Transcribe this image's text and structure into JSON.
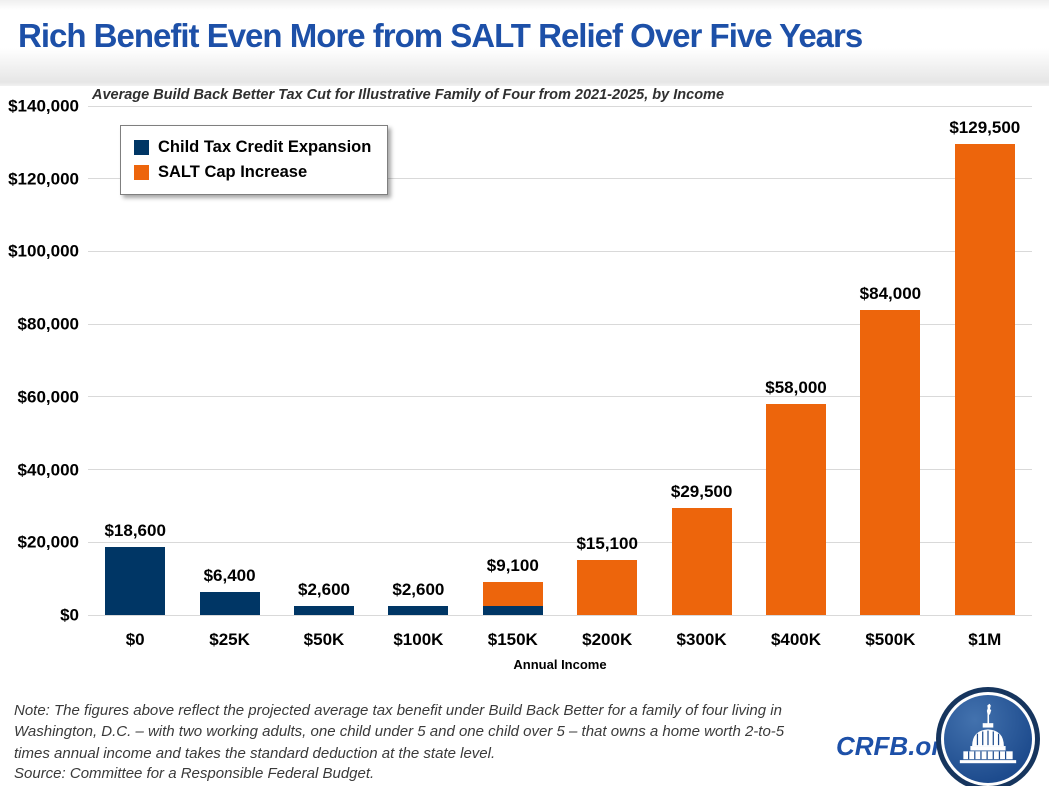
{
  "page": {
    "title": "Rich Benefit Even More from SALT Relief Over Five Years",
    "footer": {
      "note": "Note: The figures above reflect the projected average tax benefit under Build Back Better for a family of four living in Washington, D.C. – with two working adults, one child under 5 and one child over 5 – that owns a home worth 2-to-5 times annual income and takes the standard deduction at the state level.",
      "source": "Source: Committee for a Responsible Federal Budget.",
      "site": "CRFB.org"
    }
  },
  "colors": {
    "title_blue": "#1d50a8",
    "navy": "#003665",
    "orange": "#ed650c",
    "gridline": "#d9d9d9"
  },
  "chart_data": {
    "type": "bar",
    "stacked": true,
    "title": "Rich Benefit Even More from SALT Relief Over Five Years",
    "subtitle": "Average Build Back Better Tax Cut for Illustrative Family of Four from 2021-2025, by Income",
    "categories": [
      "$0",
      "$25K",
      "$50K",
      "$100K",
      "$150K",
      "$200K",
      "$300K",
      "$400K",
      "$500K",
      "$1M"
    ],
    "series": [
      {
        "name": "Child Tax Credit Expansion",
        "color": "#003665",
        "values": [
          18600,
          6400,
          2600,
          2600,
          2600,
          0,
          0,
          0,
          0,
          0
        ]
      },
      {
        "name": "SALT Cap Increase",
        "color": "#ed650c",
        "values": [
          0,
          0,
          0,
          0,
          6500,
          15100,
          29500,
          58000,
          84000,
          129500
        ]
      }
    ],
    "totals": [
      18600,
      6400,
      2600,
      2600,
      9100,
      15100,
      29500,
      58000,
      84000,
      129500
    ],
    "total_labels": [
      "$18,600",
      "$6,400",
      "$2,600",
      "$2,600",
      "$9,100",
      "$15,100",
      "$29,500",
      "$58,000",
      "$84,000",
      "$129,500"
    ],
    "xlabel": "Annual Income",
    "ylabel": "",
    "ylim": [
      0,
      140000
    ],
    "ytick_step": 20000,
    "ytick_labels": [
      "$0",
      "$20,000",
      "$40,000",
      "$60,000",
      "$80,000",
      "$100,000",
      "$120,000",
      "$140,000"
    ],
    "grid": true,
    "legend_position": "top-left"
  }
}
